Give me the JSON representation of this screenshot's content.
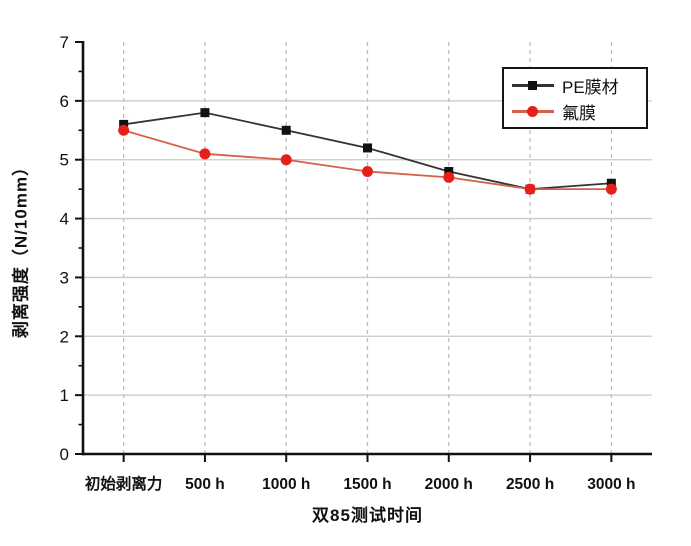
{
  "chart_data": {
    "type": "line",
    "title": "",
    "xlabel": "双85测试时间",
    "ylabel": "剥离强度（N/10mm）",
    "categories": [
      "初始剥离力",
      "500 h",
      "1000 h",
      "1500 h",
      "2000 h",
      "2500 h",
      "3000 h"
    ],
    "series": [
      {
        "name": "PE膜材",
        "values": [
          5.6,
          5.8,
          5.5,
          5.2,
          4.8,
          4.5,
          4.6
        ],
        "line_color": "#333333",
        "marker_color": "#111111",
        "marker": "square"
      },
      {
        "name": "氟膜",
        "values": [
          5.5,
          5.1,
          5.0,
          4.8,
          4.7,
          4.5,
          4.5
        ],
        "line_color": "#d6604d",
        "marker_color": "#e62019",
        "marker": "circle"
      }
    ],
    "ylim": [
      0,
      7
    ],
    "y_major_ticks": [
      0,
      1,
      2,
      3,
      4,
      5,
      6,
      7
    ],
    "y_minor_step": 0.5,
    "grid": {
      "horizontal": "solid",
      "vertical": "dashed",
      "h_color": "#c9c9c9",
      "v_color": "#bdbdbd"
    },
    "legend_position": "top-right",
    "axis_color": "#111111"
  }
}
